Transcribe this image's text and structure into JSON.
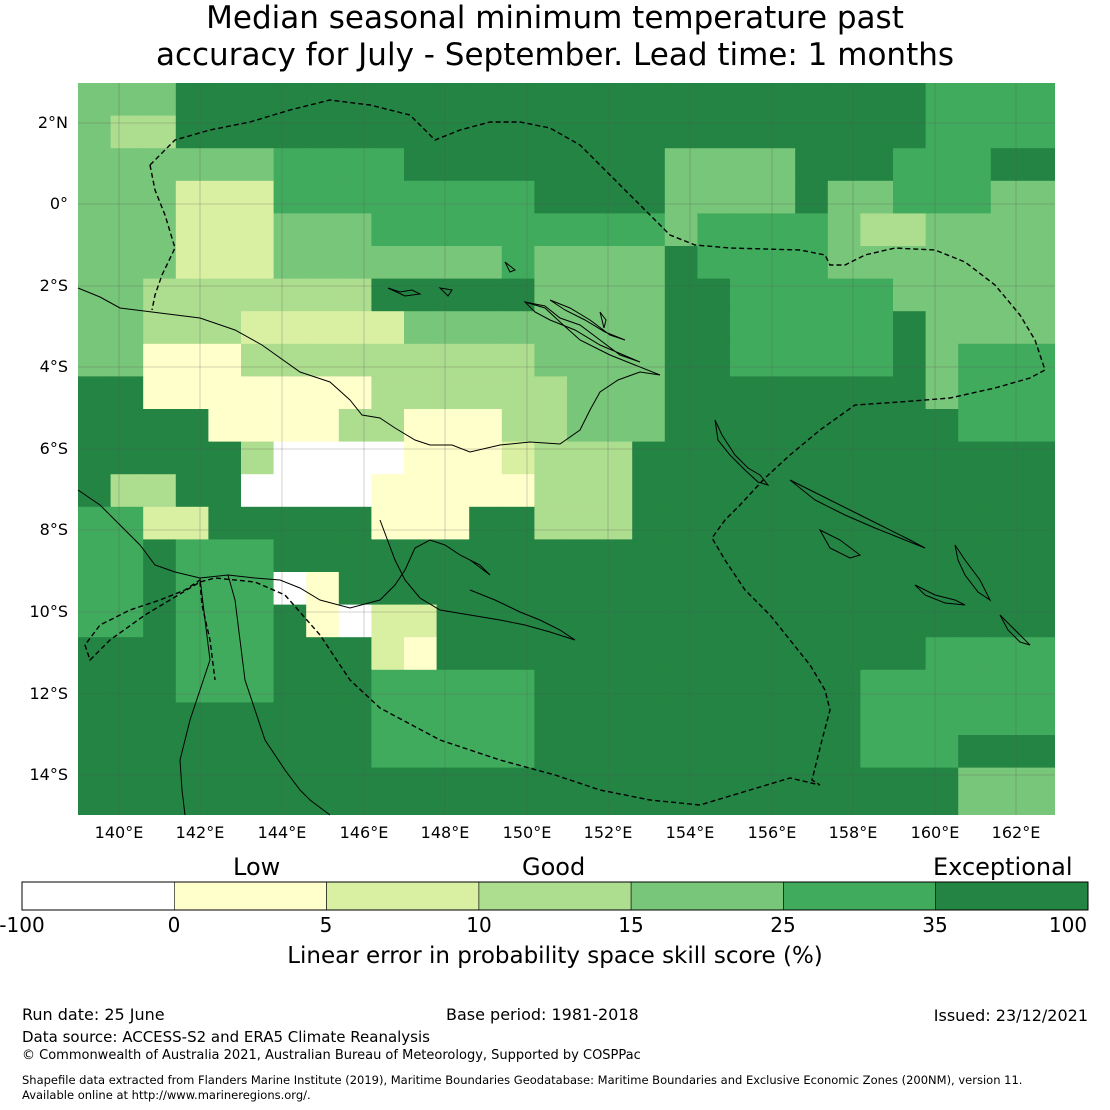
{
  "title": {
    "line1": "Median seasonal minimum temperature past",
    "line2": "accuracy for July - September. Lead time: 1 months"
  },
  "map": {
    "lat_labels": [
      "2°N",
      "0°",
      "2°S",
      "4°S",
      "6°S",
      "8°S",
      "10°S",
      "12°S",
      "14°S"
    ],
    "lon_labels": [
      "140°E",
      "142°E",
      "144°E",
      "146°E",
      "148°E",
      "150°E",
      "152°E",
      "154°E",
      "156°E",
      "158°E",
      "160°E",
      "162°E"
    ],
    "lon_range": [
      139.0,
      162.8
    ],
    "lat_range": [
      -15.0,
      2.9
    ],
    "grid_step_deg": 0.8
  },
  "colorbar": {
    "categories": [
      "Low",
      "Good",
      "Exceptional"
    ],
    "ticks": [
      "-100",
      "0",
      "5",
      "10",
      "15",
      "25",
      "35",
      "100"
    ],
    "colors": [
      "#ffffff",
      "#ffffcc",
      "#d9f0a3",
      "#addd8e",
      "#78c679",
      "#41ab5d",
      "#238443"
    ],
    "title": "Linear error in probability space skill score (%)"
  },
  "footer": {
    "run_date": "Run date: 25 June",
    "base_period": "Base period: 1981-2018",
    "issued": "Issued: 23/12/2021",
    "data_source": "Data source: ACCESS-S2 and ERA5 Climate Reanalysis",
    "copyright": "© Commonwealth of Australia 2021, Australian Bureau of Meteorology, Supported by COSPPac",
    "shapefile_1": "Shapefile data extracted from Flanders Marine Institute (2019), Maritime Boundaries Geodatabase: Maritime Boundaries and Exclusive Economic Zones (200NM), version 11.",
    "shapefile_2": "Available online at http://www.marineregions.org/."
  }
}
